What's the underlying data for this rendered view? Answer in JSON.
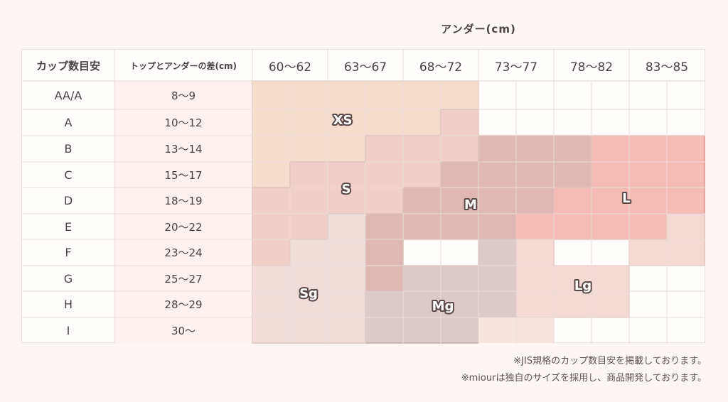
{
  "under_title": "アンダー(cm)",
  "header": {
    "cup_label": "カップ数目安",
    "diff_label": "トップとアンダーの差(cm)",
    "under_ranges": [
      "60〜62",
      "63〜67",
      "68〜72",
      "73〜77",
      "78〜82",
      "83〜85"
    ]
  },
  "rows": [
    {
      "cup": "AA/A",
      "diff": "8〜9"
    },
    {
      "cup": "A",
      "diff": "10〜12"
    },
    {
      "cup": "B",
      "diff": "13〜14"
    },
    {
      "cup": "C",
      "diff": "15〜17"
    },
    {
      "cup": "D",
      "diff": "18〜19"
    },
    {
      "cup": "E",
      "diff": "20〜22"
    },
    {
      "cup": "F",
      "diff": "23〜24"
    },
    {
      "cup": "G",
      "diff": "25〜27"
    },
    {
      "cup": "H",
      "diff": "28〜29"
    },
    {
      "cup": "I",
      "diff": "30〜"
    }
  ],
  "sizes": [
    {
      "label": "XS",
      "color": "#f5dccb",
      "stroke": "#dcc0ac"
    },
    {
      "label": "S",
      "color": "#f2cfcb",
      "stroke": "#d49e98"
    },
    {
      "label": "M",
      "color": "#dfb7b4",
      "stroke": "#c4908d"
    },
    {
      "label": "L",
      "color": "#f4bcb3",
      "stroke": "#e0968c"
    },
    {
      "label": "Sg",
      "color": "#f1dcda",
      "stroke": "#dcc3c0"
    },
    {
      "label": "Mg",
      "color": "#ddcac8",
      "stroke": "#c0a7a4"
    },
    {
      "label": "Lg",
      "color": "#f5d9d4",
      "stroke": "#e5bfb9"
    }
  ],
  "notes": [
    "※JIS規格のカップ数目安を掲載しております。",
    "※miourは独自のサイズを採用し、商品開発しております。"
  ]
}
